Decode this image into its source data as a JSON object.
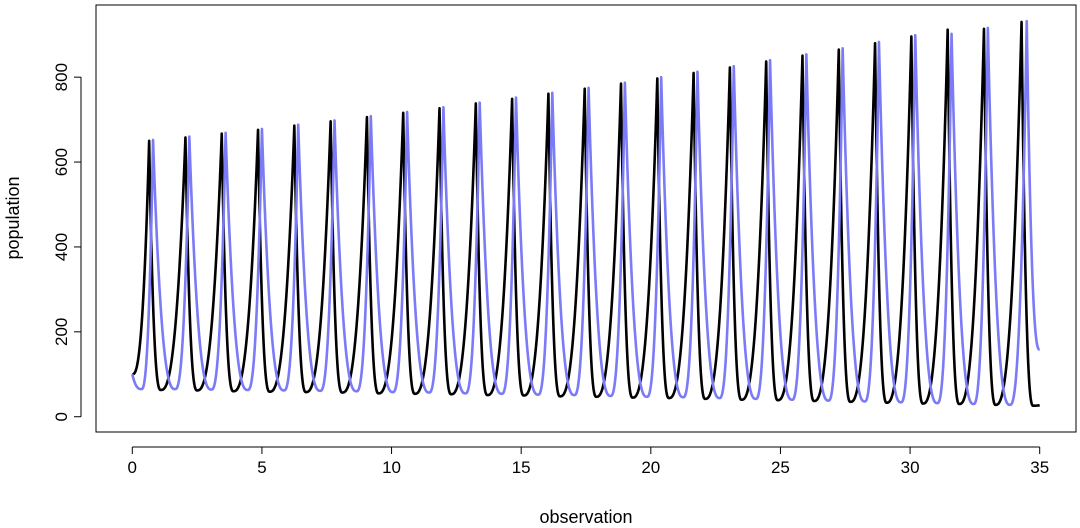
{
  "chart_data": {
    "type": "line",
    "title": "",
    "xlabel": "observation",
    "ylabel": "population",
    "xlim": [
      -1.4,
      36.4
    ],
    "ylim": [
      -36,
      970
    ],
    "x_ticks": [
      0,
      5,
      10,
      15,
      20,
      25,
      30,
      35
    ],
    "x_tick_labels": [
      "0",
      "5",
      "10",
      "15",
      "20",
      "25",
      "30",
      "35"
    ],
    "y_ticks": [
      0,
      200,
      400,
      600,
      800
    ],
    "y_tick_labels": [
      "0",
      "200",
      "400",
      "600",
      "800"
    ],
    "grid": false,
    "legend": "none",
    "series": [
      {
        "color": "#000000",
        "start": 100,
        "peak_x": [
          0.65,
          2.05,
          3.45,
          4.85,
          6.25,
          7.65,
          9.05,
          10.45,
          11.85,
          13.25,
          14.65,
          16.05,
          17.45,
          18.85,
          20.25,
          21.65,
          23.05,
          24.45,
          25.85,
          27.25,
          28.65,
          30.05,
          31.45,
          32.85,
          34.3
        ],
        "peak_y": [
          650,
          658,
          667,
          676,
          686,
          696,
          706,
          716,
          727,
          738,
          749,
          761,
          773,
          785,
          797,
          810,
          823,
          837,
          851,
          865,
          880,
          896,
          912,
          914,
          930
        ],
        "trough_x": [
          1.1,
          2.5,
          3.9,
          5.3,
          6.7,
          8.1,
          9.5,
          10.9,
          12.3,
          13.7,
          15.1,
          16.5,
          17.9,
          19.3,
          20.7,
          22.1,
          23.5,
          24.9,
          26.3,
          27.7,
          29.1,
          30.5,
          31.9,
          33.3,
          34.75
        ],
        "trough_y": [
          63,
          62,
          60,
          59,
          58,
          57,
          55,
          54,
          53,
          51,
          50,
          48,
          47,
          45,
          44,
          42,
          40,
          39,
          37,
          35,
          33,
          31,
          30,
          28,
          26
        ],
        "end": 27
      },
      {
        "color": "#7b7bf7",
        "start": 100,
        "peak_x": [
          0.8,
          2.2,
          3.6,
          5.0,
          6.4,
          7.8,
          9.2,
          10.6,
          12.0,
          13.4,
          14.8,
          16.2,
          17.6,
          19.0,
          20.4,
          21.8,
          23.2,
          24.6,
          26.0,
          27.4,
          28.8,
          30.2,
          31.6,
          33.0,
          34.5
        ],
        "peak_y": [
          652,
          660,
          669,
          678,
          688,
          698,
          708,
          718,
          729,
          740,
          752,
          763,
          775,
          787,
          800,
          813,
          826,
          840,
          854,
          868,
          883,
          899,
          902,
          916,
          932
        ],
        "trough_x": [
          0.35,
          1.65,
          3.05,
          4.45,
          5.85,
          7.25,
          8.65,
          10.05,
          11.45,
          12.85,
          14.25,
          15.65,
          17.05,
          18.45,
          19.85,
          21.25,
          22.65,
          24.05,
          25.45,
          26.85,
          28.25,
          29.65,
          31.05,
          32.45,
          33.85
        ],
        "trough_y": [
          65,
          65,
          64,
          63,
          62,
          61,
          60,
          58,
          57,
          55,
          54,
          52,
          51,
          49,
          47,
          46,
          44,
          42,
          40,
          38,
          36,
          34,
          32,
          30,
          28
        ],
        "end": 158
      }
    ]
  }
}
